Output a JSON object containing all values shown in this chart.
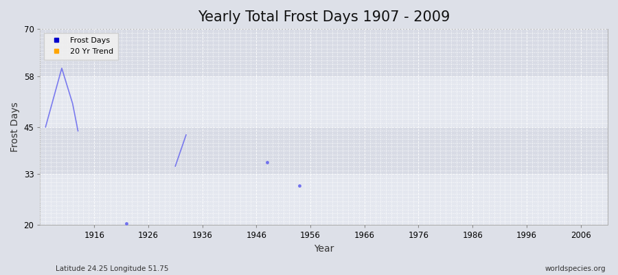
{
  "title": "Yearly Total Frost Days 1907 - 2009",
  "xlabel": "Year",
  "ylabel": "Frost Days",
  "xlim": [
    1906,
    2011
  ],
  "ylim": [
    20,
    70
  ],
  "yticks": [
    20,
    33,
    45,
    58,
    70
  ],
  "xticks": [
    1916,
    1926,
    1936,
    1946,
    1956,
    1966,
    1976,
    1986,
    1996,
    2006
  ],
  "frost_days": [
    [
      1907,
      45
    ],
    [
      1910,
      60
    ],
    [
      1912,
      51
    ],
    [
      1913,
      44
    ],
    [
      1922,
      20.5
    ],
    [
      1931,
      35
    ],
    [
      1933,
      43
    ],
    [
      1948,
      36
    ],
    [
      1954,
      30
    ]
  ],
  "line_color": "#6666ee",
  "line_alpha": 0.85,
  "line_width": 1.2,
  "bg_color": "#dde0e8",
  "plot_bg_light": "#e4e7ef",
  "plot_bg_dark": "#d8dbe5",
  "grid_color": "#ffffff",
  "legend_frost_label": "Frost Days",
  "legend_trend_label": "20 Yr Trend",
  "legend_frost_color": "#0000cc",
  "legend_trend_color": "#ffa500",
  "subtitle_left": "Latitude 24.25 Longitude 51.75",
  "subtitle_right": "worldspecies.org",
  "title_fontsize": 15,
  "axis_label_fontsize": 10,
  "tick_fontsize": 8.5,
  "legend_fontsize": 8
}
